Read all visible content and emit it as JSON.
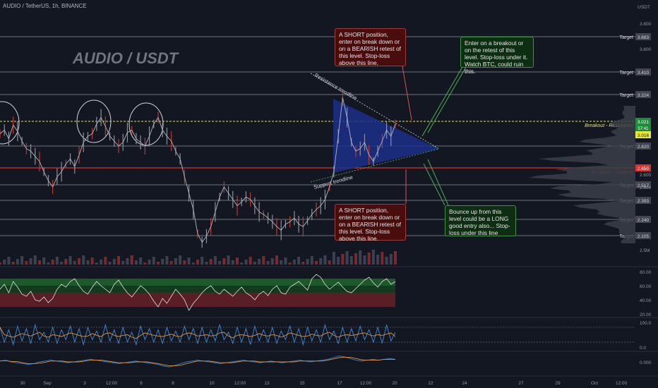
{
  "header": {
    "symbol_line": "AUDIO / TetherUS, 1h, BINANCE"
  },
  "watermark": "AUDIO / USDT",
  "currency": "USDT",
  "colors": {
    "background": "#131722",
    "resistance": "#e8e83a",
    "support": "#e03030",
    "target_line": "#8f939c",
    "triangle": "#1c2f8a",
    "rsi_upper_band": "#1d5a2a",
    "rsi_lower_band": "#5a1f26",
    "stoch_k": "#3d8bd9",
    "stoch_d": "#e6913a",
    "macd": "#2e7fd6",
    "signal": "#e6913a"
  },
  "notes": {
    "short_top": "A SHORT position, enter on break down or on a BEARISH retest of this level. Stop-loss above this line.",
    "long_breakout": "Enter on a breakout or on the retest of this level. Stop-loss under it. Watch BTC, could ruin this.",
    "short_bottom": "A SHORT position, enter on break down or on a BEARISH retest of this level. Stop-loss above this line.",
    "long_bounce": "Bounce up from this level could be a LONG good entry also... Stop-loss under this line"
  },
  "annotations": {
    "resistance_trendline": "Resistance trendline",
    "support_trendline": "Support trendline",
    "breakout_resistance": "Breakout - Resistance",
    "breakout_support": "Breakout - Support"
  },
  "chart_data": {
    "type": "line",
    "title": "AUDIO / TetherUS, 1h, BINANCE",
    "price_axis_ticks": [
      3.8,
      3.6,
      2.6,
      2.5
    ],
    "target_levels": [
      {
        "label": "Target",
        "value": 3.683
      },
      {
        "label": "Target",
        "value": 3.41
      },
      {
        "label": "Target",
        "value": 3.224
      },
      {
        "label": "Target",
        "value": 2.82
      },
      {
        "label": "Target",
        "value": 2.517
      },
      {
        "label": "Target",
        "value": 2.393
      },
      {
        "label": "Target",
        "value": 2.24
      },
      {
        "label": "Target",
        "value": 2.105
      }
    ],
    "key_levels": [
      {
        "label": "Breakout - Resistance",
        "value": 3.021
      },
      {
        "label": "Breakout - Support",
        "value": 2.65
      }
    ],
    "price_tags": {
      "current": "3.021",
      "countdown": "57:41",
      "resistance_tag": "3.016",
      "support_tag": "2.650"
    },
    "volume_tick": "2.5M",
    "rsi_ticks": [
      "80.00",
      "60.00",
      "40.00",
      "20.00"
    ],
    "stoch_ticks": [
      "100.0",
      "0.0"
    ],
    "macd_ticks": [
      "0.000"
    ],
    "x_tick_labels": [
      "30",
      "Sep",
      "3",
      "12:00",
      "6",
      "8",
      "10",
      "12:00",
      "13",
      "15",
      "17",
      "12:00",
      "20",
      "22",
      "24",
      "27",
      "29",
      "Oct",
      "12:00"
    ],
    "price_series": [
      2.92,
      2.95,
      2.88,
      2.99,
      2.94,
      2.86,
      2.8,
      2.78,
      2.74,
      2.7,
      2.62,
      2.55,
      2.5,
      2.58,
      2.62,
      2.68,
      2.72,
      2.66,
      2.75,
      2.85,
      2.9,
      2.92,
      3.0,
      3.05,
      2.98,
      2.9,
      2.86,
      2.82,
      2.85,
      2.93,
      2.95,
      2.88,
      2.85,
      2.82,
      2.9,
      3.0,
      3.05,
      2.95,
      2.9,
      2.86,
      2.78,
      2.72,
      2.58,
      2.45,
      2.32,
      2.12,
      2.05,
      2.1,
      2.18,
      2.3,
      2.42,
      2.5,
      2.45,
      2.4,
      2.35,
      2.38,
      2.42,
      2.4,
      2.35,
      2.3,
      2.28,
      2.25,
      2.22,
      2.18,
      2.15,
      2.2,
      2.22,
      2.25,
      2.2,
      2.18,
      2.23,
      2.28,
      2.32,
      2.35,
      2.4,
      2.5,
      2.62,
      2.9,
      3.2,
      3.05,
      2.85,
      2.78,
      2.8,
      2.85,
      2.75,
      2.7,
      2.78,
      2.86,
      2.95,
      2.9,
      3.0
    ],
    "rsi_series": [
      55,
      62,
      50,
      66,
      58,
      48,
      45,
      52,
      40,
      38,
      44,
      36,
      42,
      55,
      62,
      58,
      66,
      70,
      60,
      52,
      48,
      58,
      66,
      60,
      55,
      50,
      62,
      68,
      58,
      50,
      44,
      52,
      60,
      55,
      48,
      38,
      30,
      42,
      35,
      45,
      55,
      48,
      40,
      25,
      35,
      42,
      50,
      56,
      60,
      52,
      48,
      55,
      50,
      45,
      52,
      58,
      50,
      46,
      40,
      48,
      52,
      46,
      55,
      60,
      50,
      48,
      58,
      62,
      66,
      60,
      54,
      70,
      76,
      72,
      62,
      55,
      60,
      65,
      58,
      52,
      50,
      56,
      62,
      68,
      72,
      64,
      58,
      66,
      70,
      62,
      66
    ],
    "stoch_k_series": [
      80,
      20,
      70,
      10,
      85,
      25,
      75,
      15,
      90,
      30,
      60,
      20,
      80,
      15,
      70,
      30,
      85,
      20,
      75,
      10,
      80,
      30,
      65,
      20,
      90,
      25,
      70,
      15,
      80,
      20,
      60,
      10,
      85,
      30,
      75,
      20,
      70,
      15,
      80,
      25,
      65,
      20,
      85,
      30,
      75,
      15,
      80,
      20,
      70,
      25,
      90,
      30,
      60,
      15,
      80,
      20,
      75,
      10,
      85,
      25,
      70,
      20,
      80,
      15,
      65,
      30,
      85,
      20,
      75,
      10,
      80,
      25,
      70,
      20,
      90,
      30,
      65,
      15,
      80,
      20,
      75,
      25,
      85,
      30,
      70,
      20,
      80,
      15,
      90,
      25,
      60
    ],
    "macd_series": [
      0.01,
      0.02,
      0.0,
      -0.01,
      -0.02,
      -0.03,
      -0.02,
      0.0,
      0.01,
      0.02,
      0.01,
      0.0,
      -0.01,
      0.0,
      0.01,
      0.02,
      0.03,
      0.02,
      0.01,
      0.0,
      -0.01,
      -0.02,
      -0.01,
      0.0,
      0.01,
      0.0,
      -0.01,
      -0.02,
      -0.03,
      -0.05,
      -0.06,
      -0.04,
      -0.02,
      0.0,
      0.01,
      0.02,
      0.01,
      0.0,
      -0.01,
      -0.02,
      -0.01,
      0.0,
      0.01,
      0.02,
      0.01,
      0.0,
      -0.01,
      0.0,
      0.01,
      0.0,
      -0.01,
      0.0,
      0.01,
      0.02,
      0.01,
      0.0,
      0.01,
      0.02,
      0.03,
      0.05,
      0.07,
      0.06,
      0.04,
      0.02,
      0.01,
      0.02,
      0.03,
      0.02,
      0.03,
      0.04,
      0.03
    ]
  }
}
